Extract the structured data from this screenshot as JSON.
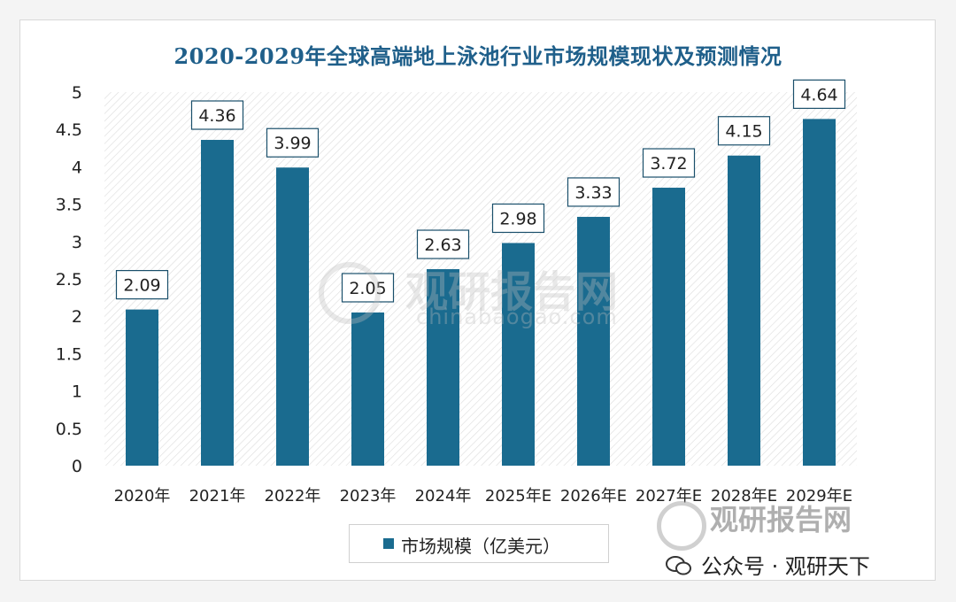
{
  "chart_data": {
    "type": "bar",
    "title": "2020-2029年全球高端地上泳池行业市场规模现状及预测情况",
    "categories": [
      "2020年",
      "2021年",
      "2022年",
      "2023年",
      "2024年",
      "2025年E",
      "2026年E",
      "2027年E",
      "2028年E",
      "2029年E"
    ],
    "series": [
      {
        "name": "市场规模（亿美元）",
        "values": [
          2.09,
          4.36,
          3.99,
          2.05,
          2.63,
          2.98,
          3.33,
          3.72,
          4.15,
          4.64
        ]
      }
    ],
    "data_labels": [
      "2.09",
      "4.36",
      "3.99",
      "2.05",
      "2.63",
      "2.98",
      "3.33",
      "3.72",
      "4.15",
      "4.64"
    ],
    "y_ticks": [
      "0",
      "0.5",
      "1",
      "1.5",
      "2",
      "2.5",
      "3",
      "3.5",
      "4",
      "4.5",
      "5"
    ],
    "ylim": [
      0,
      5
    ],
    "grid": false,
    "legend_position": "bottom",
    "colors": {
      "bar": "#1a6b8f",
      "title": "#1f5f8a",
      "hatch": "#dcdcdc"
    }
  },
  "watermark": {
    "center_text": "观研报告网",
    "center_url": "chinabaogao.com",
    "corner_text": "观研报告网",
    "corner_sub": "公众号 · 观研天下"
  }
}
